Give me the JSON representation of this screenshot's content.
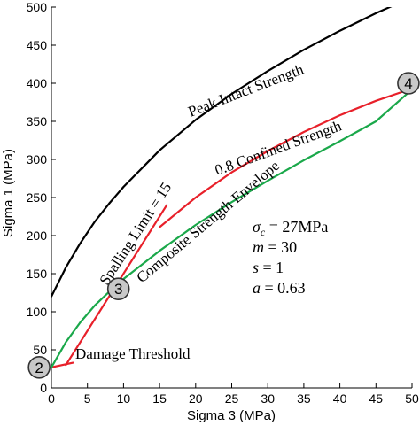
{
  "chart_data": {
    "type": "line",
    "xlabel": "Sigma 3 (MPa)",
    "ylabel": "Sigma 1 (MPa)",
    "xlim": [
      0,
      50
    ],
    "ylim": [
      0,
      500
    ],
    "xticks": [
      0,
      5,
      10,
      15,
      20,
      25,
      30,
      35,
      40,
      45,
      50
    ],
    "yticks": [
      0,
      50,
      100,
      150,
      200,
      250,
      300,
      350,
      400,
      450,
      500
    ],
    "grid": false,
    "series": [
      {
        "name": "Peak Intact Strength",
        "color": "#000000",
        "x": [
          0,
          2,
          4,
          6,
          8,
          10,
          15,
          20,
          25,
          30,
          35,
          40,
          45,
          50
        ],
        "y": [
          120,
          158,
          190,
          218,
          242,
          264,
          312,
          352,
          386,
          416,
          444,
          469,
          492,
          513
        ]
      },
      {
        "name": "Damage Threshold",
        "color": "#e8202a",
        "x": [
          0,
          3
        ],
        "y": [
          27,
          33
        ]
      },
      {
        "name": "Spalling Limit = 15",
        "color": "#e8202a",
        "x": [
          2,
          16
        ],
        "y": [
          30,
          240
        ]
      },
      {
        "name": "0.8 Confined Strength",
        "color": "#e8202a",
        "x": [
          15,
          20,
          25,
          30,
          35,
          40,
          45,
          50
        ],
        "y": [
          211,
          250,
          283,
          311,
          336,
          358,
          377,
          393
        ]
      },
      {
        "name": "Composite Strength Envelope",
        "color": "#1aa84a",
        "x": [
          0,
          2,
          4,
          6,
          8,
          10,
          15,
          20,
          25,
          30,
          35,
          40,
          45,
          50
        ],
        "y": [
          27,
          60,
          86,
          108,
          126,
          143,
          180,
          214,
          244,
          272,
          299,
          324,
          350,
          392
        ]
      }
    ],
    "curve_labels": {
      "peak": "Peak Intact Strength",
      "confined": "0.8 Confined Strength",
      "spalling": "Spalling Limit = 15",
      "composite": "Composite Strength Envelope",
      "damage": "Damage Threshold"
    },
    "parameters": {
      "sigma_c": {
        "symbol": "σ",
        "sub": "c",
        "value": " = 27MPa"
      },
      "m": {
        "symbol": "m",
        "value": " = 30"
      },
      "s": {
        "symbol": "s",
        "value": " = 1"
      },
      "a": {
        "symbol": "a",
        "value": " = 0.63"
      }
    },
    "markers": [
      {
        "label": "2",
        "x": -1.7,
        "y": 27
      },
      {
        "label": "3",
        "x": 9.3,
        "y": 130
      },
      {
        "label": "4",
        "x": 49.5,
        "y": 400
      }
    ]
  },
  "colors": {
    "background": "#ffffff",
    "red": "#e8202a",
    "green": "#1aa84a",
    "marker_fill": "#c8c8c8"
  }
}
